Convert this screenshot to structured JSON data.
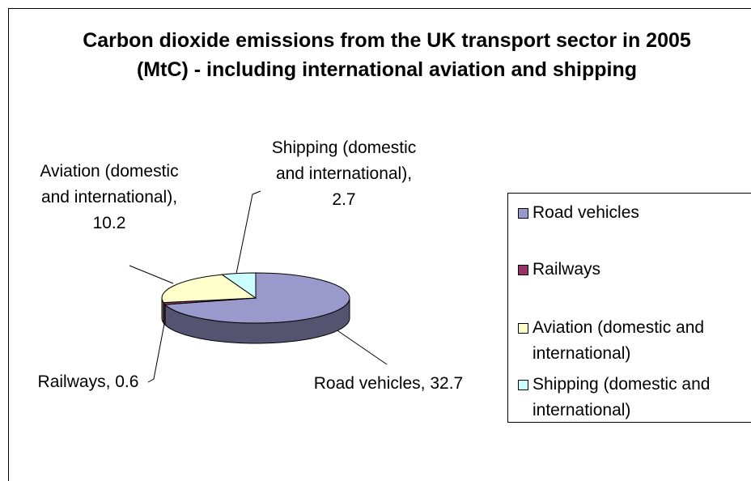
{
  "chart_data": {
    "type": "pie",
    "title": "Carbon dioxide emissions from the UK transport sector in 2005 (MtC) - including international aviation and shipping",
    "categories": [
      "Road vehicles",
      "Railways",
      "Aviation (domestic and international)",
      "Shipping (domestic and international)"
    ],
    "values": [
      32.7,
      0.6,
      10.2,
      2.7
    ],
    "value_labels": [
      "Road vehicles, 32.7",
      "Railways, 0.6",
      "Aviation (domestic and international), 10.2",
      "Shipping (domestic and international), 2.7"
    ],
    "colors": [
      "#9999cc",
      "#993366",
      "#ffffcc",
      "#ccffff"
    ],
    "legend": "right"
  }
}
